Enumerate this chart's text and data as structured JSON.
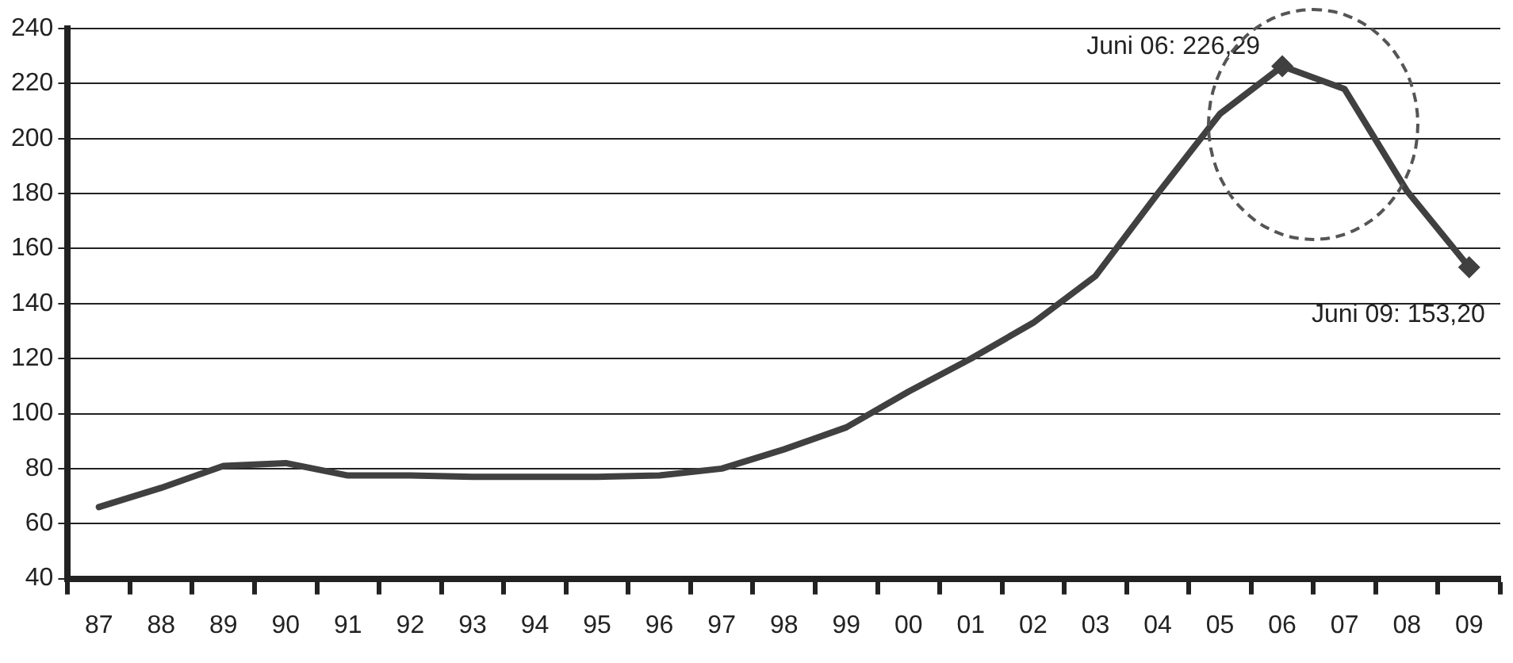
{
  "chart_data": {
    "type": "line",
    "categories": [
      "87",
      "88",
      "89",
      "90",
      "91",
      "92",
      "93",
      "94",
      "95",
      "96",
      "97",
      "98",
      "99",
      "00",
      "01",
      "02",
      "03",
      "04",
      "05",
      "06",
      "07",
      "08",
      "09"
    ],
    "series": [
      {
        "color": "#404040",
        "values": [
          66,
          73,
          81,
          82,
          77.5,
          77.5,
          77,
          77,
          77,
          77.5,
          80,
          87,
          95,
          108,
          120,
          133,
          150,
          180,
          209,
          226.29,
          218,
          181,
          153.2
        ]
      }
    ],
    "ylim": [
      40,
      240
    ],
    "yticks": [
      40,
      60,
      80,
      100,
      120,
      140,
      160,
      180,
      200,
      220,
      240
    ],
    "grid": "y",
    "marker": "none",
    "line_style": "solid",
    "legend": false,
    "annotations": [
      {
        "text": "Juni 06: 226,29",
        "x": "06",
        "y": 226.29
      },
      {
        "text": "Juni 09: 153,20",
        "x": "09",
        "y": 153.2
      }
    ]
  }
}
